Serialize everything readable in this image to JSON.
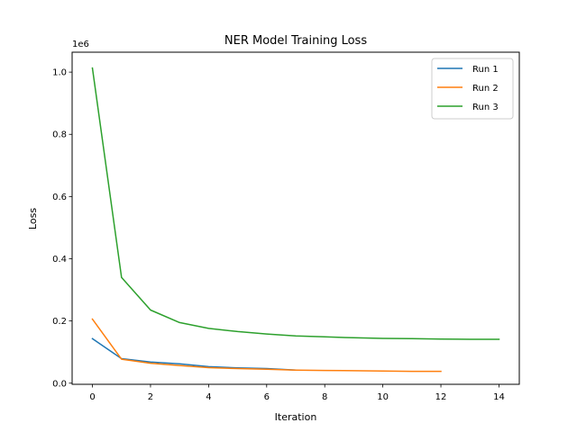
{
  "chart_data": {
    "type": "line",
    "title": "NER Model Training Loss",
    "xlabel": "Iteration",
    "ylabel": "Loss",
    "y_offset_label": "1e6",
    "xlim": [
      -0.7,
      14.7
    ],
    "ylim": [
      -0.0036,
      1.064
    ],
    "x_ticks": [
      0,
      2,
      4,
      6,
      8,
      10,
      12,
      14
    ],
    "y_ticks": [
      0.0,
      0.2,
      0.4,
      0.6,
      0.8,
      1.0
    ],
    "y_tick_labels": [
      "0.0",
      "0.2",
      "0.4",
      "0.6",
      "0.8",
      "1.0"
    ],
    "grid": false,
    "legend_position": "top-right",
    "series": [
      {
        "name": "Run 1",
        "color": "#1f77b4",
        "x": [
          0,
          1,
          2,
          3,
          4,
          5,
          6,
          7
        ],
        "y": [
          0.143,
          0.079,
          0.068,
          0.062,
          0.053,
          0.049,
          0.047,
          0.042
        ]
      },
      {
        "name": "Run 2",
        "color": "#ff7f0e",
        "x": [
          0,
          1,
          2,
          3,
          4,
          5,
          6,
          7,
          8,
          9,
          10,
          11,
          12
        ],
        "y": [
          0.206,
          0.077,
          0.064,
          0.057,
          0.05,
          0.047,
          0.045,
          0.042,
          0.041,
          0.04,
          0.039,
          0.038,
          0.038
        ]
      },
      {
        "name": "Run 3",
        "color": "#2ca02c",
        "x": [
          0,
          1,
          2,
          3,
          4,
          5,
          6,
          7,
          8,
          9,
          10,
          11,
          12,
          13,
          14
        ],
        "y": [
          1.013,
          0.34,
          0.235,
          0.195,
          0.176,
          0.166,
          0.158,
          0.152,
          0.149,
          0.146,
          0.144,
          0.143,
          0.142,
          0.141,
          0.141
        ]
      }
    ]
  }
}
